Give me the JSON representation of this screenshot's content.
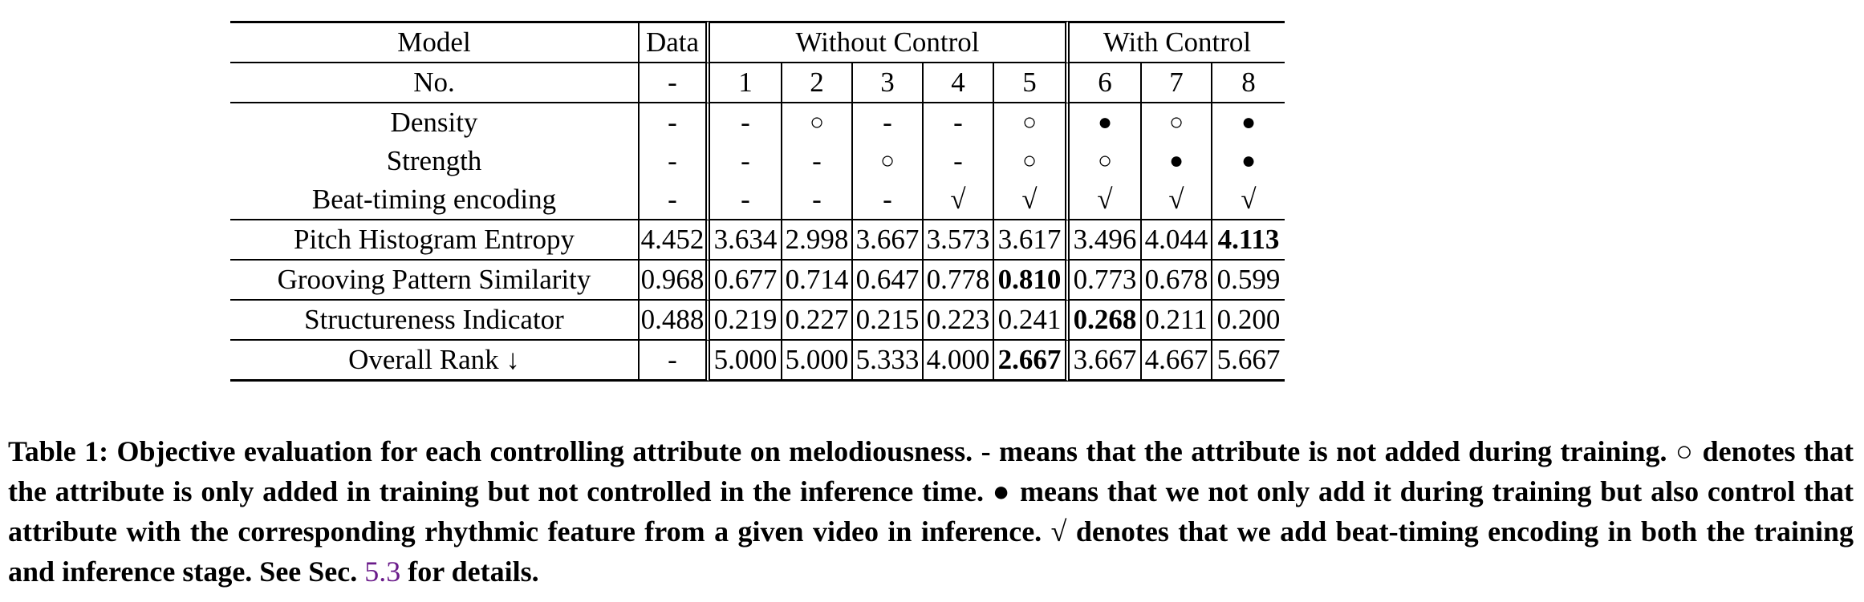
{
  "table": {
    "header_model": "Model",
    "header_data": "Data",
    "group_without": "Without Control",
    "group_with": "With Control",
    "rows": [
      {
        "label": "No.",
        "cells": [
          "-",
          "1",
          "2",
          "3",
          "4",
          "5",
          "6",
          "7",
          "8"
        ]
      },
      {
        "label": "Density",
        "cells": [
          "-",
          "-",
          "○",
          "-",
          "-",
          "○",
          "●",
          "○",
          "●"
        ]
      },
      {
        "label": "Strength",
        "cells": [
          "-",
          "-",
          "-",
          "○",
          "-",
          "○",
          "○",
          "●",
          "●"
        ]
      },
      {
        "label": "Beat-timing encoding",
        "cells": [
          "-",
          "-",
          "-",
          "-",
          "√",
          "√",
          "√",
          "√",
          "√"
        ]
      },
      {
        "label": "Pitch Histogram Entropy",
        "cells": [
          "4.452",
          "3.634",
          "2.998",
          "3.667",
          "3.573",
          "3.617",
          "3.496",
          "4.044",
          "4.113"
        ],
        "bold_index": 8
      },
      {
        "label": "Grooving Pattern Similarity",
        "cells": [
          "0.968",
          "0.677",
          "0.714",
          "0.647",
          "0.778",
          "0.810",
          "0.773",
          "0.678",
          "0.599"
        ],
        "bold_index": 5
      },
      {
        "label": "Structureness Indicator",
        "cells": [
          "0.488",
          "0.219",
          "0.227",
          "0.215",
          "0.223",
          "0.241",
          "0.268",
          "0.211",
          "0.200"
        ],
        "bold_index": 6
      },
      {
        "label": "Overall Rank ↓",
        "cells": [
          "-",
          "5.000",
          "5.000",
          "5.333",
          "4.000",
          "2.667",
          "3.667",
          "4.667",
          "5.667"
        ],
        "bold_index": 5
      }
    ]
  },
  "caption": {
    "text": "Table 1: Objective evaluation for each controlling attribute on melodiousness. - means that the attribute is not added during training. ○ denotes that the attribute is only added in training but not controlled in the inference time. ● means that we not only add it during training but also control that attribute with the corresponding rhythmic feature from a given video in inference. √ denotes that we add beat-timing encoding in both the training and inference stage. See Sec.",
    "ref": "5.3",
    "suffix": "for details."
  }
}
